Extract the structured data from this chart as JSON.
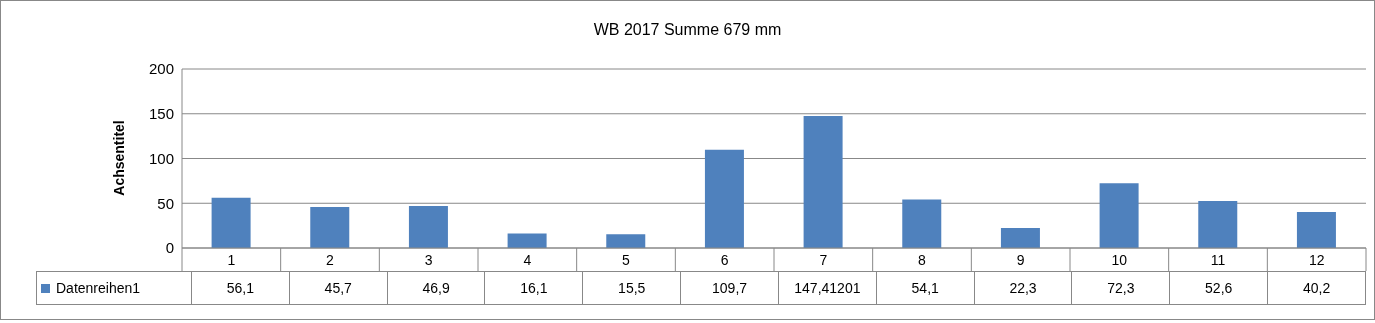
{
  "chart_data": {
    "type": "bar",
    "title": "WB 2017  Summe  679 mm",
    "ylabel": "Achsentitel",
    "categories": [
      "1",
      "2",
      "3",
      "4",
      "5",
      "6",
      "7",
      "8",
      "9",
      "10",
      "11",
      "12"
    ],
    "series": [
      {
        "name": "Datenreihen1",
        "color": "#4f81bd",
        "values": [
          56.1,
          45.7,
          46.9,
          16.1,
          15.5,
          109.7,
          147.41201,
          54.1,
          22.3,
          72.3,
          52.6,
          40.2
        ],
        "value_labels": [
          "56,1",
          "45,7",
          "46,9",
          "16,1",
          "15,5",
          "109,7",
          "147,41201",
          "54,1",
          "22,3",
          "72,3",
          "52,6",
          "40,2"
        ]
      }
    ],
    "ylim": [
      0,
      200
    ],
    "yticks": [
      0,
      50,
      100,
      150,
      200
    ],
    "grid": "y",
    "legend": "bottom"
  }
}
